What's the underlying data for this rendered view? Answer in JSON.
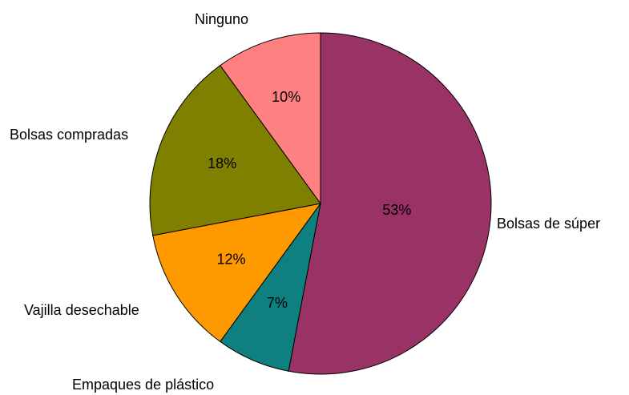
{
  "chart_data": {
    "type": "pie",
    "title": "",
    "slices": [
      {
        "label": "Bolsas de súper",
        "value": 53,
        "value_label": "53%",
        "color": "#993366"
      },
      {
        "label": "Empaques de plástico",
        "value": 7,
        "value_label": "7%",
        "color": "#0f8080"
      },
      {
        "label": "Vajilla desechable",
        "value": 12,
        "value_label": "12%",
        "color": "#ff9900"
      },
      {
        "label": "Bolsas compradas",
        "value": 18,
        "value_label": "18%",
        "color": "#808000"
      },
      {
        "label": "Ninguno",
        "value": 10,
        "value_label": "10%",
        "color": "#ff8080"
      }
    ],
    "start": "12 o'clock",
    "direction": "clockwise",
    "legend": "none",
    "label_placement": "outside slices, percentages inside"
  }
}
